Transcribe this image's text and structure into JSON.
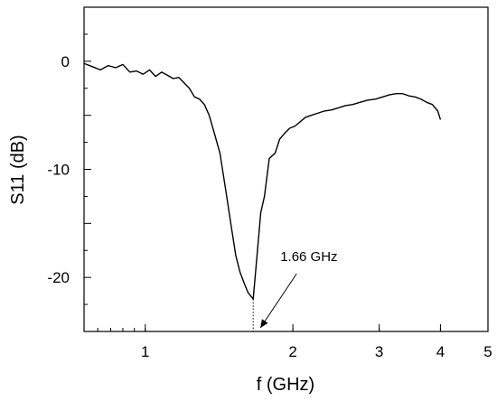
{
  "chart_data": {
    "type": "line",
    "title": "",
    "xlabel": "f (GHz)",
    "ylabel": "S11 (dB)",
    "x_scale": "log",
    "xlim": [
      0.75,
      5
    ],
    "ylim": [
      -25,
      5
    ],
    "x_ticks": [
      {
        "value": 1,
        "label": "1"
      },
      {
        "value": 2,
        "label": "2"
      },
      {
        "value": 3,
        "label": "3"
      },
      {
        "value": 4,
        "label": "4"
      },
      {
        "value": 5,
        "label": "5"
      }
    ],
    "y_ticks": [
      {
        "value": 0,
        "label": "0"
      },
      {
        "value": -10,
        "label": "-10"
      },
      {
        "value": -20,
        "label": "-20"
      }
    ],
    "grid": false,
    "series": [
      {
        "color": "#000000",
        "x": [
          0.75,
          0.78,
          0.81,
          0.84,
          0.87,
          0.9,
          0.93,
          0.96,
          0.99,
          1.02,
          1.05,
          1.08,
          1.11,
          1.14,
          1.17,
          1.2,
          1.23,
          1.26,
          1.29,
          1.32,
          1.35,
          1.38,
          1.42,
          1.46,
          1.5,
          1.53,
          1.56,
          1.59,
          1.62,
          1.66,
          1.69,
          1.72,
          1.75,
          1.79,
          1.84,
          1.88,
          1.93,
          1.97,
          2.02,
          2.07,
          2.12,
          2.18,
          2.25,
          2.32,
          2.4,
          2.48,
          2.56,
          2.65,
          2.74,
          2.84,
          2.95,
          3.05,
          3.15,
          3.25,
          3.35,
          3.45,
          3.55,
          3.65,
          3.75,
          3.85,
          3.95,
          4.0
        ],
        "y": [
          -0.2,
          -0.5,
          -0.8,
          -0.4,
          -0.6,
          -0.3,
          -1.0,
          -0.9,
          -1.2,
          -0.8,
          -1.4,
          -1.0,
          -1.3,
          -1.6,
          -1.5,
          -2.0,
          -2.5,
          -3.3,
          -3.5,
          -4.0,
          -5.0,
          -6.5,
          -8.5,
          -12.0,
          -15.5,
          -18.0,
          -19.5,
          -20.5,
          -21.4,
          -22.0,
          -18.0,
          -14.0,
          -12.5,
          -9.0,
          -8.5,
          -7.2,
          -6.6,
          -6.2,
          -6.0,
          -5.6,
          -5.2,
          -5.0,
          -4.8,
          -4.6,
          -4.5,
          -4.3,
          -4.1,
          -4.0,
          -3.8,
          -3.6,
          -3.5,
          -3.3,
          -3.1,
          -3.0,
          -3.0,
          -3.2,
          -3.3,
          -3.5,
          -3.8,
          -4.0,
          -4.6,
          -5.4
        ]
      }
    ],
    "annotations": [
      {
        "text": "1.66 GHz",
        "x": 1.66,
        "y": -22
      }
    ]
  }
}
